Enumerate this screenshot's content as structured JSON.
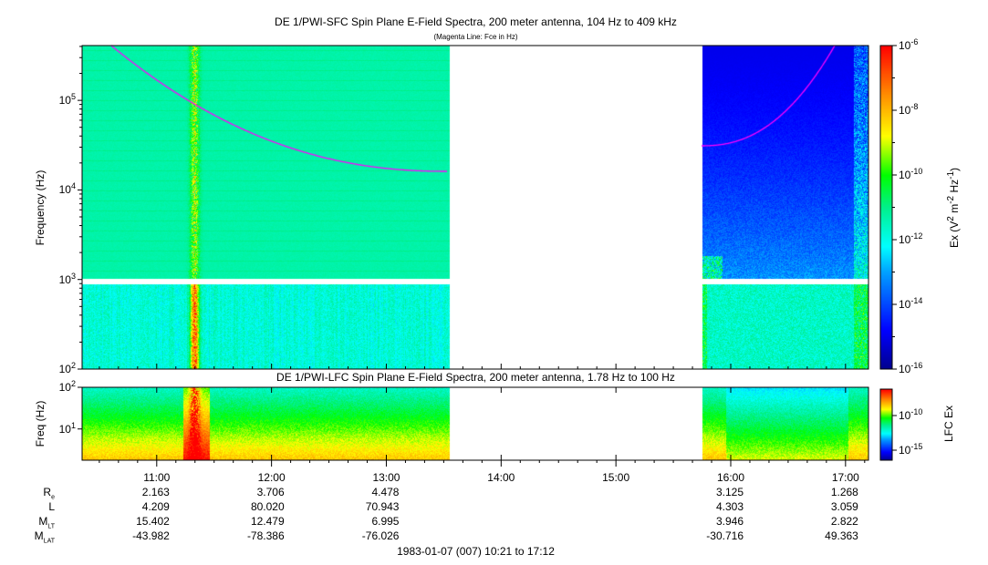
{
  "chart_data": [
    {
      "type": "heatmap",
      "title": "DE 1/PWI-SFC  Spin Plane E-Field Spectra, 200 meter antenna, 104 Hz to 409 kHz",
      "subtitle": "(Magenta Line: Fce in Hz)",
      "ylabel": "Frequency (Hz)",
      "yscale": "log",
      "ylim": [
        100,
        409000
      ],
      "yticks": [
        {
          "v": 100,
          "base": "10",
          "exp": "2"
        },
        {
          "v": 1000,
          "base": "10",
          "exp": "3"
        },
        {
          "v": 10000,
          "base": "10",
          "exp": "4"
        },
        {
          "v": 100000,
          "base": "10",
          "exp": "5"
        }
      ],
      "colorbar": {
        "label_pre": "Ex (V",
        "label_sup1": "2",
        "label_mid": " m",
        "label_sup2": "-2",
        "label_mid2": " Hz",
        "label_sup3": "-1",
        "label_post": ")",
        "range_exp": [
          -16,
          -6
        ],
        "ticks": [
          {
            "base": "10",
            "exp": "-6"
          },
          {
            "base": "10",
            "exp": "-8"
          },
          {
            "base": "10",
            "exp": "-10"
          },
          {
            "base": "10",
            "exp": "-12"
          },
          {
            "base": "10",
            "exp": "-14"
          },
          {
            "base": "10",
            "exp": "-16"
          }
        ]
      },
      "data_coverage_hours": [
        [
          10.35,
          13.55
        ],
        [
          15.75,
          17.2
        ]
      ],
      "overlay": "Fce magenta line"
    },
    {
      "type": "heatmap",
      "title": "DE 1/PWI-LFC  Spin Plane E-Field Spectra, 200 meter antenna, 1.78 Hz to 100 Hz",
      "ylabel": "Freq (Hz)",
      "yscale": "log",
      "ylim": [
        1.78,
        100
      ],
      "yticks": [
        {
          "v": 10,
          "base": "10",
          "exp": "1"
        },
        {
          "v": 100,
          "base": "10",
          "exp": "2"
        }
      ],
      "colorbar": {
        "label": "LFC Ex",
        "range_exp": [
          -17,
          -6.5
        ],
        "ticks": [
          {
            "base": "10",
            "exp": "-10"
          },
          {
            "base": "10",
            "exp": "-15"
          }
        ]
      }
    }
  ],
  "xaxis": {
    "ticks": [
      "11:00",
      "12:00",
      "13:00",
      "14:00",
      "15:00",
      "16:00",
      "17:00"
    ],
    "tick_hours": [
      11,
      12,
      13,
      14,
      15,
      16,
      17
    ],
    "xlim_hours": [
      10.35,
      17.2
    ],
    "footer": "1983-01-07 (007) 10:21 to 17:12"
  },
  "ephemeris": {
    "rows": [
      {
        "label": "R",
        "sub": "e",
        "values": [
          "2.163",
          "3.706",
          "4.478",
          "",
          "",
          "3.125",
          "1.268"
        ]
      },
      {
        "label": "L",
        "sub": "",
        "values": [
          "4.209",
          "80.020",
          "70.943",
          "",
          "",
          "4.303",
          "3.059"
        ]
      },
      {
        "label": "M",
        "sub": "LT",
        "values": [
          "15.402",
          "12.479",
          "6.995",
          "",
          "",
          "3.946",
          "2.822"
        ]
      },
      {
        "label": "M",
        "sub": "LAT",
        "values": [
          "-43.982",
          "-78.386",
          "-76.026",
          "",
          "",
          "-30.716",
          "49.363"
        ]
      }
    ]
  },
  "colors": {
    "fce": "#ff00ff",
    "frame": "#000000"
  }
}
